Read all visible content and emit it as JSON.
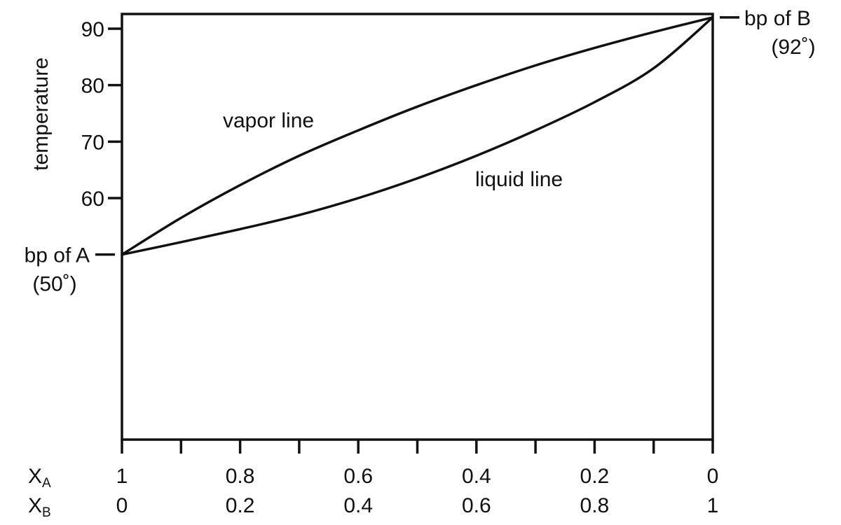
{
  "chart_data": {
    "type": "line",
    "ylabel": "temperature",
    "yticks": [
      60,
      70,
      80,
      90
    ],
    "ylim": [
      25,
      92
    ],
    "xlim": [
      0,
      1
    ],
    "xticks": [
      0,
      0.1,
      0.2,
      0.3,
      0.4,
      0.5,
      0.6,
      0.7,
      0.8,
      0.9,
      1
    ],
    "x_rows": [
      {
        "var": "X",
        "sub": "A",
        "labels": [
          "1",
          "0.8",
          "0.6",
          "0.4",
          "0.2",
          "0"
        ]
      },
      {
        "var": "X",
        "sub": "B",
        "labels": [
          "0",
          "0.2",
          "0.4",
          "0.6",
          "0.8",
          "1"
        ]
      }
    ],
    "series": [
      {
        "name": "vapor line",
        "x": [
          0,
          0.1,
          0.2,
          0.3,
          0.4,
          0.5,
          0.6,
          0.7,
          0.8,
          0.9,
          1
        ],
        "y": [
          50,
          56.5,
          62.3,
          67.5,
          72,
          76.2,
          80,
          83.5,
          86.6,
          89.4,
          92
        ]
      },
      {
        "name": "liquid line",
        "x": [
          0,
          0.1,
          0.2,
          0.3,
          0.4,
          0.5,
          0.6,
          0.7,
          0.8,
          0.9,
          1
        ],
        "y": [
          50,
          52.2,
          54.5,
          57,
          60,
          63.5,
          67.5,
          72,
          77,
          83,
          92
        ]
      }
    ],
    "annotations": [
      {
        "line1": "bp of A",
        "line2": "(50˚)",
        "y": 50,
        "side": "left"
      },
      {
        "line1": "bp of B",
        "line2": "(92˚)",
        "y": 92,
        "side": "right"
      }
    ],
    "grid": false,
    "legend": "none"
  }
}
